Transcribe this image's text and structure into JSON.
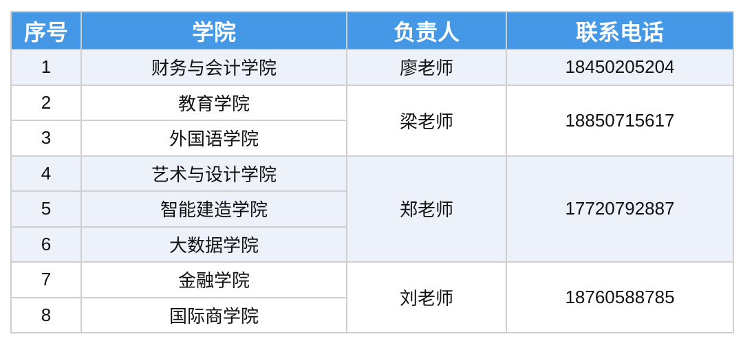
{
  "colors": {
    "header_bg": "#4598e6",
    "alt_row_bg": "#edf2fa",
    "border": "#cfcfcf"
  },
  "headers": [
    "序号",
    "学院",
    "负责人",
    "联系电话"
  ],
  "rows": [
    {
      "no": "1",
      "college": "财务与会计学院"
    },
    {
      "no": "2",
      "college": "教育学院"
    },
    {
      "no": "3",
      "college": "外国语学院"
    },
    {
      "no": "4",
      "college": "艺术与设计学院"
    },
    {
      "no": "5",
      "college": "智能建造学院"
    },
    {
      "no": "6",
      "college": "大数据学院"
    },
    {
      "no": "7",
      "college": "金融学院"
    },
    {
      "no": "8",
      "college": "国际商学院"
    }
  ],
  "contacts": [
    {
      "person": "廖老师",
      "phone": "18450205204"
    },
    {
      "person": "梁老师",
      "phone": "18850715617"
    },
    {
      "person": "郑老师",
      "phone": "17720792887"
    },
    {
      "person": "刘老师",
      "phone": "18760588785"
    }
  ]
}
